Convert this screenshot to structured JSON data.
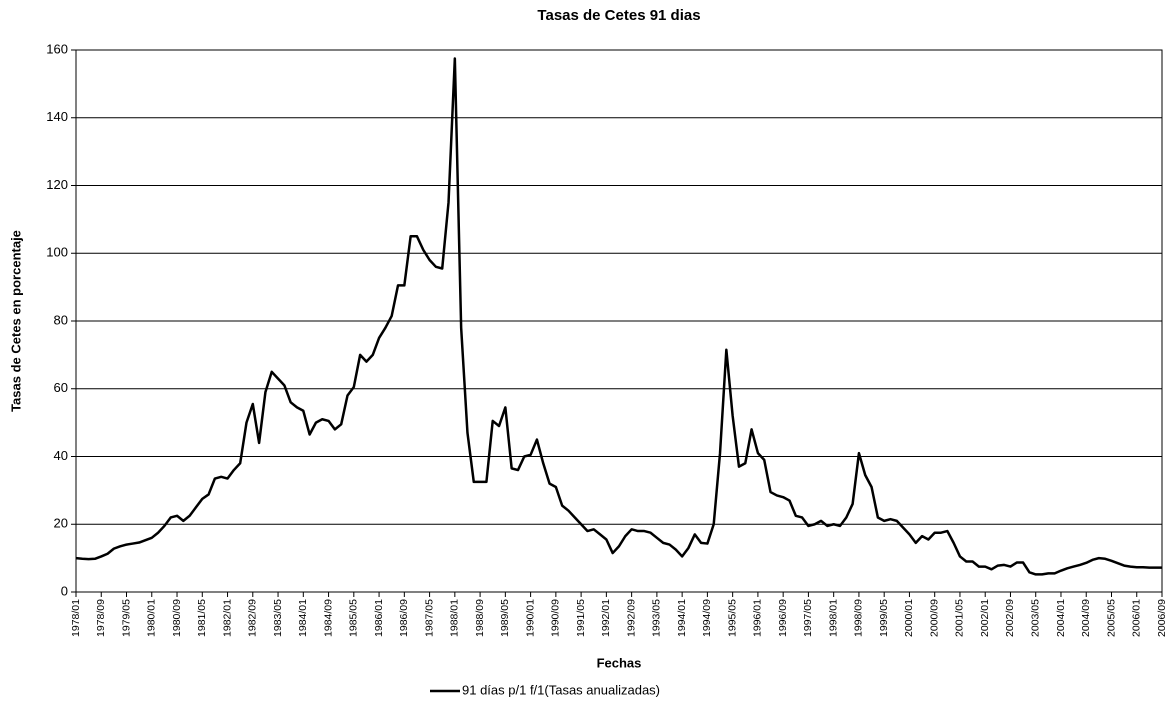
{
  "chart_data": {
    "type": "line",
    "title": "Tasas de Cetes 91 dias",
    "xlabel": "Fechas",
    "ylabel": "Tasas de Cetes en porcentaje",
    "categories": [
      "1978/01",
      null,
      null,
      null,
      "1978/09",
      null,
      null,
      null,
      "1979/05",
      null,
      null,
      null,
      "1980/01",
      null,
      null,
      null,
      "1980/09",
      null,
      null,
      null,
      "1981/05",
      null,
      null,
      null,
      "1982/01",
      null,
      null,
      null,
      "1982/09",
      null,
      null,
      null,
      "1983/05",
      null,
      null,
      null,
      "1984/01",
      null,
      null,
      null,
      "1984/09",
      null,
      null,
      null,
      "1985/05",
      null,
      null,
      null,
      "1986/01",
      null,
      null,
      null,
      "1986/09",
      null,
      null,
      null,
      "1987/05",
      null,
      null,
      null,
      "1988/01",
      null,
      null,
      null,
      "1988/09",
      null,
      null,
      null,
      "1989/05",
      null,
      null,
      null,
      "1990/01",
      null,
      null,
      null,
      "1990/09",
      null,
      null,
      null,
      "1991/05",
      null,
      null,
      null,
      "1992/01",
      null,
      null,
      null,
      "1992/09",
      null,
      null,
      null,
      "1993/05",
      null,
      null,
      null,
      "1994/01",
      null,
      null,
      null,
      "1994/09",
      null,
      null,
      null,
      "1995/05",
      null,
      null,
      null,
      "1996/01",
      null,
      null,
      null,
      "1996/09",
      null,
      null,
      null,
      "1997/05",
      null,
      null,
      null,
      "1998/01",
      null,
      null,
      null,
      "1998/09",
      null,
      null,
      null,
      "1999/05",
      null,
      null,
      null,
      "2000/01",
      null,
      null,
      null,
      "2000/09",
      null,
      null,
      null,
      "2001/05",
      null,
      null,
      null,
      "2002/01",
      null,
      null,
      null,
      "2002/09",
      null,
      null,
      null,
      "2003/05",
      null,
      null,
      null,
      "2004/01",
      null,
      null,
      null,
      "2004/09",
      null,
      null,
      null,
      "2005/05",
      null,
      null,
      null,
      "2006/01",
      null,
      null,
      null,
      "2006/09"
    ],
    "series": [
      {
        "name": "91 días p/1 f/1(Tasas anualizadas)",
        "color": "#000000",
        "values": [
          10,
          9.8,
          9.7,
          9.8,
          10.5,
          11.3,
          12.8,
          13.5,
          14,
          14.3,
          14.6,
          15.3,
          16,
          17.5,
          19.5,
          22,
          22.5,
          21,
          22.5,
          25,
          27.5,
          28.8,
          33.5,
          34,
          33.5,
          36,
          38,
          50,
          55.5,
          44,
          59,
          65,
          63,
          61,
          56,
          54.5,
          53.5,
          46.5,
          50,
          51,
          50.5,
          48,
          49.5,
          58,
          60.5,
          70,
          68,
          70,
          75,
          78,
          81.5,
          90.5,
          90.5,
          105,
          105,
          101,
          98,
          96,
          95.5,
          115,
          157.5,
          78,
          47,
          32.5,
          32.5,
          32.5,
          50.5,
          49,
          54.5,
          36.5,
          36,
          40,
          40.5,
          45,
          38,
          32,
          31,
          25.5,
          24,
          22,
          20,
          18,
          18.5,
          17,
          15.5,
          11.5,
          13.5,
          16.5,
          18.5,
          18,
          18,
          17.5,
          16,
          14.5,
          14,
          12.5,
          10.5,
          13,
          17,
          14.5,
          14.3,
          20,
          41,
          71.5,
          52,
          37,
          38,
          48,
          41,
          39,
          29.5,
          28.5,
          28,
          27,
          22.5,
          22,
          19.5,
          20,
          21,
          19.5,
          20,
          19.5,
          22,
          26,
          41,
          34.5,
          31,
          22,
          21,
          21.5,
          21,
          19,
          17,
          14.5,
          16.5,
          15.5,
          17.5,
          17.5,
          18,
          14.5,
          10.5,
          9,
          9,
          7.5,
          7.5,
          6.7,
          7.8,
          8,
          7.5,
          8.7,
          8.7,
          5.8,
          5.2,
          5.2,
          5.5,
          5.5,
          6.3,
          7,
          7.5,
          8,
          8.6,
          9.5,
          10,
          9.8,
          9.2,
          8.5,
          7.8,
          7.5,
          7.3,
          7.3,
          7.2,
          7.2,
          7.2
        ]
      }
    ],
    "ylim": [
      0,
      160
    ],
    "yticks": [
      0,
      20,
      40,
      60,
      80,
      100,
      120,
      140,
      160
    ],
    "grid": true,
    "legend": "bottom"
  }
}
